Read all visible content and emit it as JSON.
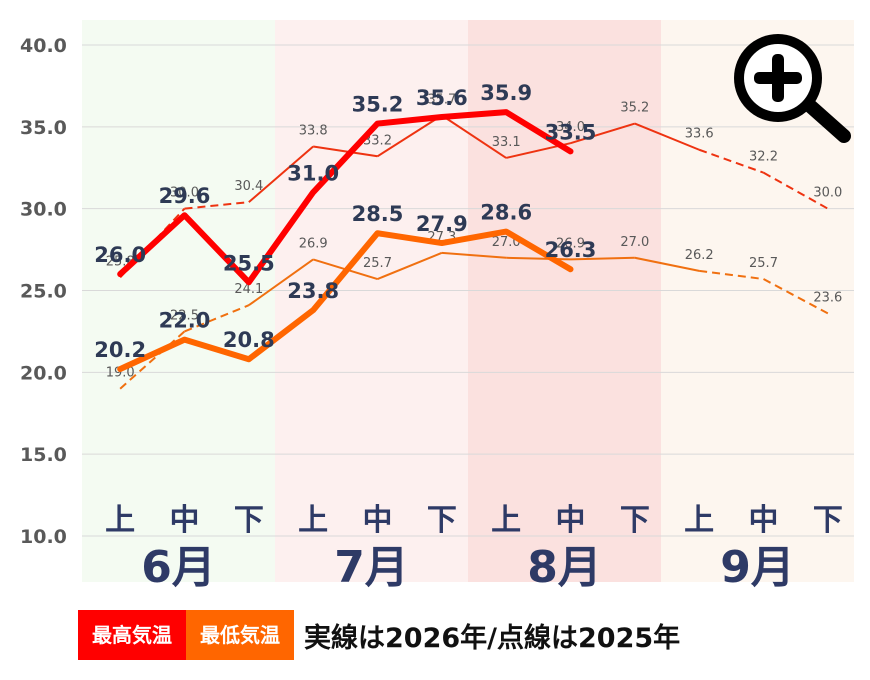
{
  "chart_data": {
    "type": "line",
    "ylim": [
      10,
      40
    ],
    "yticks": [
      "10.0",
      "15.0",
      "20.0",
      "25.0",
      "30.0",
      "35.0",
      "40.0"
    ],
    "months": [
      {
        "label": "6月",
        "bg": "#f4fbf2"
      },
      {
        "label": "7月",
        "bg": "#fdf0ef"
      },
      {
        "label": "8月",
        "bg": "#fbe1df"
      },
      {
        "label": "9月",
        "bg": "#fdf6ef"
      }
    ],
    "periods": [
      "上",
      "中",
      "下",
      "上",
      "中",
      "下",
      "上",
      "中",
      "下",
      "上",
      "中",
      "下"
    ],
    "series": [
      {
        "name": "最高気温 2026",
        "color": "#ff0000",
        "style": "solid-thick",
        "values": [
          26.0,
          29.6,
          25.5,
          31.0,
          35.2,
          35.6,
          35.9,
          33.5,
          null,
          null,
          null,
          null
        ],
        "labels": [
          "26.0",
          "29.6",
          "25.5",
          "31.0",
          "35.2",
          "35.6",
          "35.9",
          "33.5",
          "",
          "",
          "",
          ""
        ]
      },
      {
        "name": "最低気温 2026",
        "color": "#ff6600",
        "style": "solid-thick",
        "values": [
          20.2,
          22.0,
          20.8,
          23.8,
          28.5,
          27.9,
          28.6,
          26.3,
          null,
          null,
          null,
          null
        ],
        "labels": [
          "20.2",
          "22.0",
          "20.8",
          "23.8",
          "28.5",
          "27.9",
          "28.6",
          "26.3",
          "",
          "",
          "",
          ""
        ]
      },
      {
        "name": "最高気温 2025",
        "color": "#ee3311",
        "style": "mixed-thin",
        "values": [
          25.8,
          30.0,
          30.4,
          33.8,
          33.2,
          35.7,
          33.1,
          34.0,
          35.2,
          33.6,
          32.2,
          30.0
        ],
        "labels": [
          "25.8",
          "30.0",
          "30.4",
          "33.8",
          "33.2",
          "35.7",
          "33.1",
          "34.0",
          "35.2",
          "33.6",
          "32.2",
          "30.0"
        ]
      },
      {
        "name": "最低気温 2025",
        "color": "#f07010",
        "style": "mixed-thin",
        "values": [
          19.0,
          22.5,
          24.1,
          26.9,
          25.7,
          27.3,
          27.0,
          26.9,
          27.0,
          26.2,
          25.7,
          23.6
        ],
        "labels": [
          "19.0",
          "22.5",
          "24.1",
          "26.9",
          "25.7",
          "27.3",
          "27.0",
          "26.9",
          "27.0",
          "26.2",
          "25.7",
          "23.6"
        ]
      }
    ]
  },
  "legend": {
    "max_label": "最高気温",
    "min_label": "最低気温",
    "max_color": "#ff0000",
    "min_color": "#ff6600",
    "note": "実線は2026年/点線は2025年"
  },
  "zoom_icon": "magnifier-plus-icon"
}
